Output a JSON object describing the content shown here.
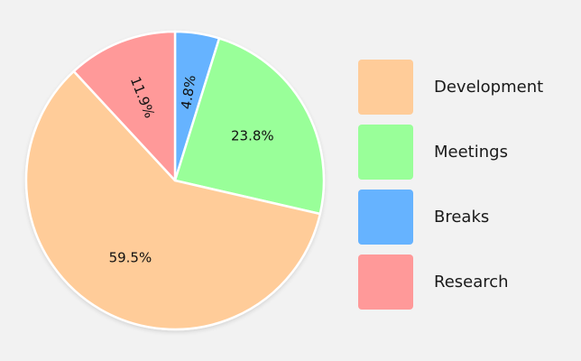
{
  "chart_data": {
    "type": "pie",
    "title": "",
    "start_angle": "12 o'clock, clockwise",
    "categories": [
      "Breaks",
      "Meetings",
      "Development",
      "Research"
    ],
    "values": [
      4.8,
      23.8,
      59.5,
      11.9
    ],
    "labels": [
      "4.8%",
      "23.8%",
      "59.5%",
      "11.9%"
    ],
    "colors": [
      "#66b3ff",
      "#99ff99",
      "#ffcc99",
      "#ff9999"
    ],
    "legend_position": "right",
    "legend": [
      {
        "label": "Development",
        "color": "#ffcc99"
      },
      {
        "label": "Meetings",
        "color": "#99ff99"
      },
      {
        "label": "Breaks",
        "color": "#66b3ff"
      },
      {
        "label": "Research",
        "color": "#ff9999"
      }
    ]
  }
}
